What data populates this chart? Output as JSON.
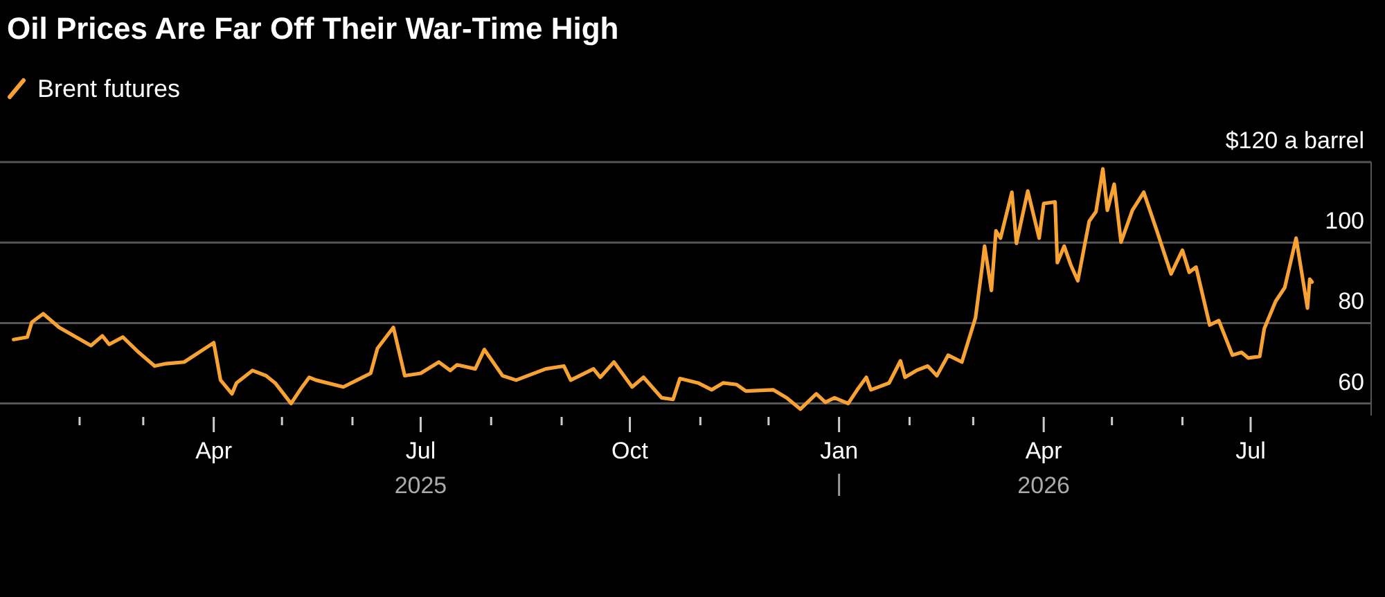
{
  "chart_data": {
    "type": "line",
    "title": "Oil Prices Are Far Off Their War-Time High",
    "legend": "top left",
    "grid": "y",
    "tick_labels": true,
    "xlim": [
      "2024-12-28",
      "2026-08-23"
    ],
    "xticks": [
      {
        "value": "2025-02-01",
        "label": null
      },
      {
        "value": "2025-03-01",
        "label": null
      },
      {
        "value": "2025-04-01",
        "label": "Apr"
      },
      {
        "value": "2025-05-01",
        "label": null
      },
      {
        "value": "2025-06-01",
        "label": null
      },
      {
        "value": "2025-07-01",
        "label": "Jul\n2025"
      },
      {
        "value": "2025-08-01",
        "label": null
      },
      {
        "value": "2025-09-01",
        "label": null
      },
      {
        "value": "2025-10-01",
        "label": "Oct"
      },
      {
        "value": "2025-11-01",
        "label": null
      },
      {
        "value": "2025-12-01",
        "label": null
      },
      {
        "value": "2026-01-01",
        "label": "Jan"
      },
      {
        "value": "2026-02-01",
        "label": null
      },
      {
        "value": "2026-03-01",
        "label": null
      },
      {
        "value": "2026-04-01",
        "label": "Apr\n2026"
      },
      {
        "value": "2026-05-01",
        "label": null
      },
      {
        "value": "2026-06-01",
        "label": null
      },
      {
        "value": "2026-07-01",
        "label": "Jul"
      }
    ],
    "ylim": [
      57,
      120
    ],
    "yticks": [
      60,
      80,
      100,
      {
        "value": 120,
        "label": "$120 a barrel"
      }
    ],
    "series": [
      {
        "name": "Brent futures",
        "color": "#f7a232",
        "x": [
          "2025-01-03",
          "2025-01-09",
          "2025-01-11",
          "2025-01-16",
          "2025-01-23",
          "2025-02-06",
          "2025-02-11",
          "2025-02-14",
          "2025-02-20",
          "2025-02-27",
          "2025-03-06",
          "2025-03-11",
          "2025-03-19",
          "2025-04-01",
          "2025-04-04",
          "2025-04-09",
          "2025-04-11",
          "2025-04-18",
          "2025-04-24",
          "2025-04-28",
          "2025-05-05",
          "2025-05-09",
          "2025-05-13",
          "2025-05-16",
          "2025-05-28",
          "2025-06-03",
          "2025-06-09",
          "2025-06-12",
          "2025-06-19",
          "2025-06-24",
          "2025-07-01",
          "2025-07-09",
          "2025-07-14",
          "2025-07-17",
          "2025-07-25",
          "2025-07-29",
          "2025-08-06",
          "2025-08-12",
          "2025-08-25",
          "2025-09-02",
          "2025-09-05",
          "2025-09-15",
          "2025-09-18",
          "2025-09-24",
          "2025-10-02",
          "2025-10-07",
          "2025-10-15",
          "2025-10-20",
          "2025-10-23",
          "2025-10-31",
          "2025-11-06",
          "2025-11-11",
          "2025-11-17",
          "2025-11-21",
          "2025-12-03",
          "2025-12-09",
          "2025-12-15",
          "2025-12-22",
          "2025-12-26",
          "2025-12-30",
          "2026-01-05",
          "2026-01-09",
          "2026-01-13",
          "2026-01-15",
          "2026-01-23",
          "2026-01-28",
          "2026-01-30",
          "2026-02-04",
          "2026-02-09",
          "2026-02-13",
          "2026-02-18",
          "2026-02-24",
          "2026-03-02",
          "2026-03-05",
          "2026-03-06",
          "2026-03-09",
          "2026-03-11",
          "2026-03-13",
          "2026-03-18",
          "2026-03-20",
          "2026-03-25",
          "2026-03-30",
          "2026-04-01",
          "2026-04-06",
          "2026-04-07",
          "2026-04-10",
          "2026-04-13",
          "2026-04-16",
          "2026-04-21",
          "2026-04-24",
          "2026-04-27",
          "2026-04-29",
          "2026-05-02",
          "2026-05-05",
          "2026-05-10",
          "2026-05-15",
          "2026-05-21",
          "2026-05-27",
          "2026-06-01",
          "2026-06-04",
          "2026-06-07",
          "2026-06-13",
          "2026-06-17",
          "2026-06-23",
          "2026-06-27",
          "2026-06-30",
          "2026-07-05",
          "2026-07-07",
          "2026-07-12",
          "2026-07-16",
          "2026-07-21",
          "2026-07-26",
          "2026-07-27",
          "2026-07-28"
        ],
        "values": [
          75.9,
          76.5,
          80.2,
          82.3,
          78.9,
          74.4,
          76.8,
          74.7,
          76.5,
          72.7,
          69.3,
          69.9,
          70.3,
          75.1,
          65.8,
          62.4,
          65.1,
          68.2,
          66.9,
          65.1,
          60.0,
          63.4,
          66.5,
          65.8,
          64.1,
          65.8,
          67.5,
          73.7,
          78.9,
          66.9,
          67.5,
          70.3,
          68.2,
          69.6,
          68.6,
          73.4,
          66.9,
          65.8,
          68.6,
          69.3,
          65.8,
          68.6,
          66.5,
          70.3,
          64.1,
          66.5,
          61.4,
          61.0,
          66.2,
          65.1,
          63.4,
          65.1,
          64.7,
          63.1,
          63.4,
          61.4,
          58.6,
          62.4,
          60.3,
          61.4,
          60.0,
          63.4,
          66.5,
          63.4,
          65.1,
          70.6,
          66.5,
          68.2,
          69.3,
          66.9,
          72.0,
          70.3,
          81.3,
          94.3,
          99.1,
          88.1,
          102.9,
          101.1,
          112.5,
          99.8,
          112.8,
          101.1,
          109.7,
          110.1,
          95.0,
          99.1,
          94.3,
          90.5,
          105.3,
          107.7,
          118.3,
          108.0,
          114.5,
          100.1,
          108.0,
          112.5,
          102.5,
          92.2,
          98.1,
          92.6,
          93.9,
          79.5,
          80.6,
          72.0,
          72.7,
          71.3,
          71.7,
          78.6,
          85.4,
          88.8,
          101.1,
          83.7,
          90.9,
          90.2
        ]
      }
    ]
  }
}
